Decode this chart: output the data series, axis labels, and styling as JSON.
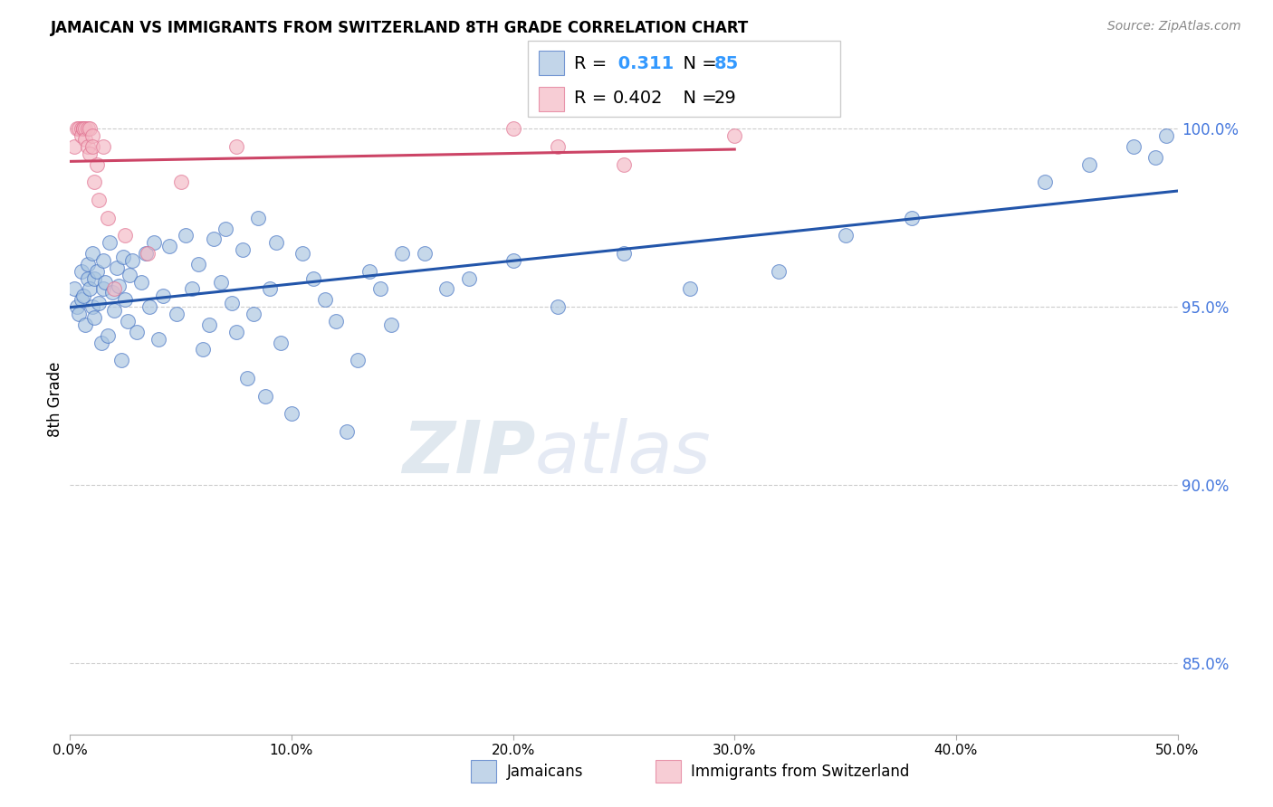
{
  "title": "JAMAICAN VS IMMIGRANTS FROM SWITZERLAND 8TH GRADE CORRELATION CHART",
  "source": "Source: ZipAtlas.com",
  "ylabel": "8th Grade",
  "y_ticks": [
    85.0,
    90.0,
    95.0,
    100.0
  ],
  "x_range": [
    0.0,
    50.0
  ],
  "y_range": [
    83.0,
    101.8
  ],
  "blue_R": 0.311,
  "blue_N": 85,
  "pink_R": 0.402,
  "pink_N": 29,
  "blue_color": "#A8C4E0",
  "blue_edge_color": "#4472C4",
  "blue_line_color": "#2255AA",
  "pink_color": "#F4B8C4",
  "pink_edge_color": "#E07090",
  "pink_line_color": "#CC4466",
  "legend_label_blue": "Jamaicans",
  "legend_label_pink": "Immigrants from Switzerland",
  "watermark_text": "ZIPatlas",
  "blue_scatter_x": [
    0.2,
    0.3,
    0.4,
    0.5,
    0.5,
    0.6,
    0.7,
    0.8,
    0.8,
    0.9,
    1.0,
    1.0,
    1.1,
    1.1,
    1.2,
    1.3,
    1.4,
    1.5,
    1.5,
    1.6,
    1.7,
    1.8,
    1.9,
    2.0,
    2.1,
    2.2,
    2.3,
    2.4,
    2.5,
    2.6,
    2.7,
    2.8,
    3.0,
    3.2,
    3.4,
    3.6,
    3.8,
    4.0,
    4.2,
    4.5,
    4.8,
    5.2,
    5.5,
    5.8,
    6.0,
    6.3,
    6.5,
    6.8,
    7.0,
    7.3,
    7.5,
    7.8,
    8.0,
    8.3,
    8.5,
    8.8,
    9.0,
    9.3,
    9.5,
    10.0,
    10.5,
    11.0,
    11.5,
    12.0,
    12.5,
    13.0,
    13.5,
    14.0,
    14.5,
    15.0,
    16.0,
    17.0,
    18.0,
    20.0,
    22.0,
    25.0,
    28.0,
    32.0,
    35.0,
    38.0,
    44.0,
    46.0,
    48.0,
    49.0,
    49.5
  ],
  "blue_scatter_y": [
    95.5,
    95.0,
    94.8,
    95.2,
    96.0,
    95.3,
    94.5,
    95.8,
    96.2,
    95.5,
    95.0,
    96.5,
    94.7,
    95.8,
    96.0,
    95.1,
    94.0,
    95.5,
    96.3,
    95.7,
    94.2,
    96.8,
    95.4,
    94.9,
    96.1,
    95.6,
    93.5,
    96.4,
    95.2,
    94.6,
    95.9,
    96.3,
    94.3,
    95.7,
    96.5,
    95.0,
    96.8,
    94.1,
    95.3,
    96.7,
    94.8,
    97.0,
    95.5,
    96.2,
    93.8,
    94.5,
    96.9,
    95.7,
    97.2,
    95.1,
    94.3,
    96.6,
    93.0,
    94.8,
    97.5,
    92.5,
    95.5,
    96.8,
    94.0,
    92.0,
    96.5,
    95.8,
    95.2,
    94.6,
    91.5,
    93.5,
    96.0,
    95.5,
    94.5,
    96.5,
    96.5,
    95.5,
    95.8,
    96.3,
    95.0,
    96.5,
    95.5,
    96.0,
    97.0,
    97.5,
    98.5,
    99.0,
    99.5,
    99.2,
    99.8
  ],
  "pink_scatter_x": [
    0.2,
    0.3,
    0.4,
    0.5,
    0.5,
    0.6,
    0.6,
    0.7,
    0.7,
    0.8,
    0.8,
    0.9,
    0.9,
    1.0,
    1.0,
    1.1,
    1.2,
    1.3,
    1.5,
    1.7,
    2.0,
    2.5,
    3.5,
    5.0,
    7.5,
    20.0,
    22.0,
    25.0,
    30.0
  ],
  "pink_scatter_y": [
    99.5,
    100.0,
    100.0,
    100.0,
    99.8,
    100.0,
    100.0,
    100.0,
    99.7,
    100.0,
    99.5,
    100.0,
    99.3,
    99.8,
    99.5,
    98.5,
    99.0,
    98.0,
    99.5,
    97.5,
    95.5,
    97.0,
    96.5,
    98.5,
    99.5,
    100.0,
    99.5,
    99.0,
    99.8
  ]
}
